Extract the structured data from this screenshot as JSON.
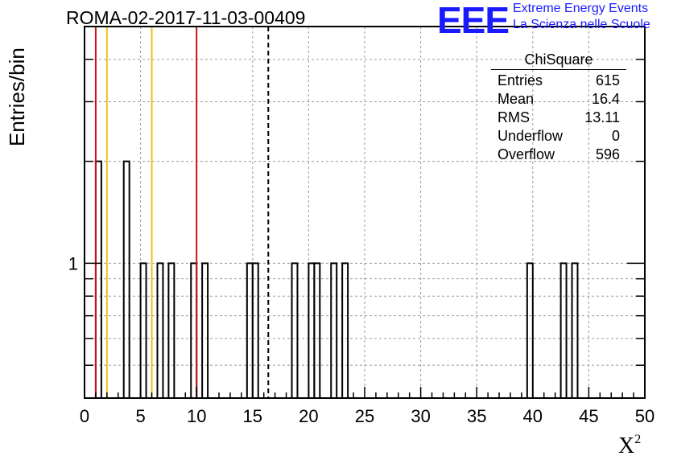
{
  "header": {
    "title": "ROMA-02-2017-11-03-00409"
  },
  "logo": {
    "mark": "EEE",
    "line1": "Extreme Energy Events",
    "line2": "La Scienza nelle Scuole"
  },
  "stats": {
    "title": "ChiSquare",
    "rows": [
      {
        "label": "Entries",
        "value": "615"
      },
      {
        "label": "Mean",
        "value": "16.4"
      },
      {
        "label": "RMS",
        "value": "13.11"
      },
      {
        "label": "Underflow",
        "value": "0"
      },
      {
        "label": "Overflow",
        "value": "596"
      }
    ]
  },
  "chart_data": {
    "type": "bar",
    "title": "ROMA-02-2017-11-03-00409",
    "xlabel": "X",
    "xlabel_superscript": "2",
    "ylabel": "Entries/bin",
    "xlim": [
      0,
      50
    ],
    "ylog": true,
    "ylim": [
      0.4,
      5
    ],
    "bin_width": 0.5,
    "x_ticks": [
      "0",
      "5",
      "10",
      "15",
      "20",
      "25",
      "30",
      "35",
      "40",
      "45",
      "50"
    ],
    "y_tick_labels": [
      {
        "value": 1,
        "label": "1"
      }
    ],
    "grid": true,
    "bins": [
      {
        "x": 1.0,
        "value": 2
      },
      {
        "x": 3.5,
        "value": 2
      },
      {
        "x": 5.0,
        "value": 1
      },
      {
        "x": 6.5,
        "value": 1
      },
      {
        "x": 7.5,
        "value": 1
      },
      {
        "x": 9.5,
        "value": 1
      },
      {
        "x": 10.5,
        "value": 1
      },
      {
        "x": 14.5,
        "value": 1
      },
      {
        "x": 15.0,
        "value": 1
      },
      {
        "x": 18.5,
        "value": 1
      },
      {
        "x": 20.0,
        "value": 1
      },
      {
        "x": 20.5,
        "value": 1
      },
      {
        "x": 22.0,
        "value": 1
      },
      {
        "x": 23.0,
        "value": 1
      },
      {
        "x": 39.5,
        "value": 1
      },
      {
        "x": 42.5,
        "value": 1
      },
      {
        "x": 43.5,
        "value": 1
      }
    ],
    "vertical_lines": [
      {
        "x": 1.0,
        "color": "#cc1111",
        "style": "solid"
      },
      {
        "x": 2.0,
        "color": "#f0c020",
        "style": "solid"
      },
      {
        "x": 6.0,
        "color": "#f0c020",
        "style": "solid"
      },
      {
        "x": 10.0,
        "color": "#cc1111",
        "style": "solid"
      },
      {
        "x": 16.4,
        "color": "#000000",
        "style": "dashed"
      }
    ]
  }
}
